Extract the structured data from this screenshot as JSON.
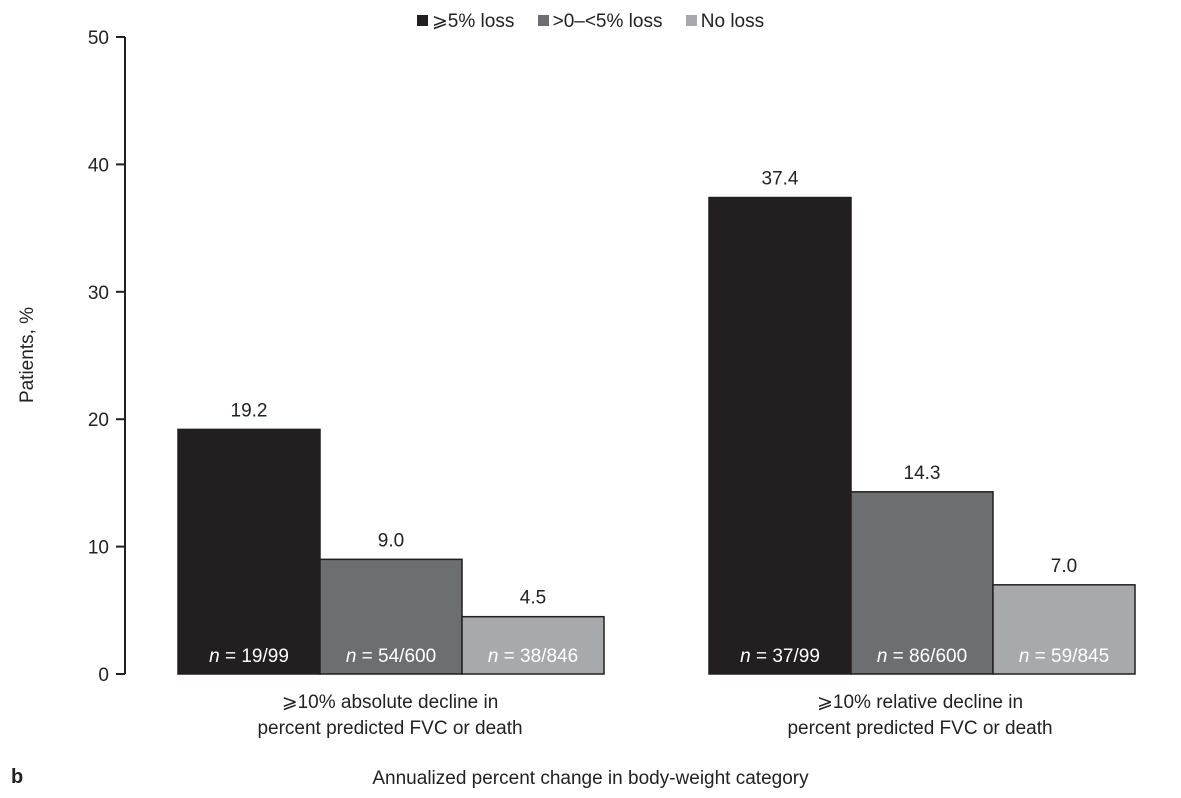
{
  "panel_letter": "b",
  "chart_data": {
    "type": "bar",
    "title": "",
    "xlabel": "Annualized percent change in body-weight category",
    "ylabel": "Patients, %",
    "ylim": [
      0,
      50
    ],
    "yticks": [
      0,
      10,
      20,
      30,
      40,
      50
    ],
    "categories": [
      [
        "⩾10% absolute decline in",
        "percent predicted FVC or death"
      ],
      [
        "⩾10% relative decline in",
        "percent predicted FVC or death"
      ]
    ],
    "legend_position": "top-center",
    "series": [
      {
        "name": "⩾5% loss",
        "color": "#231f20",
        "values": [
          19.2,
          37.4
        ],
        "n_labels": [
          "19/99",
          "37/99"
        ]
      },
      {
        "name": ">0–<5% loss",
        "color": "#6d6e71",
        "values": [
          9.0,
          14.3
        ],
        "n_labels": [
          "54/600",
          "86/600"
        ]
      },
      {
        "name": "No loss",
        "color": "#a7a9ac",
        "values": [
          4.5,
          7.0
        ],
        "n_labels": [
          "38/846",
          "59/845"
        ]
      }
    ]
  }
}
